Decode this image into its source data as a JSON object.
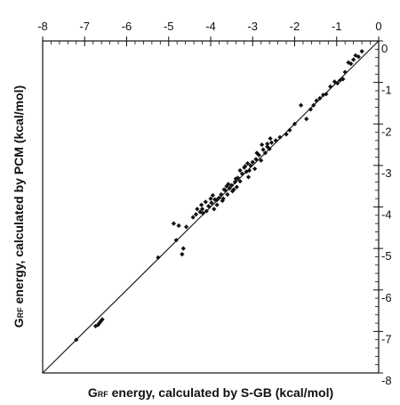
{
  "chart_data": {
    "type": "scatter",
    "title": "",
    "xlabel_main": "G",
    "xlabel_sub": "RF",
    "xlabel_rest": " energy, calculated by S-GB (kcal/mol)",
    "ylabel_main": "G",
    "ylabel_sub": "RF",
    "ylabel_rest": " energy, calculated by PCM (kcal/mol)",
    "xlim": [
      -8,
      0
    ],
    "ylim": [
      -8,
      0
    ],
    "x_ticks": [
      "-8",
      "-7",
      "-6",
      "-5",
      "-4",
      "-3",
      "-2",
      "-1",
      "0"
    ],
    "y_ticks": [
      "0",
      "-1",
      "-2",
      "-3",
      "-4",
      "-5",
      "-6",
      "-7",
      "-8"
    ],
    "x_tick_values": [
      -8,
      -7,
      -6,
      -5,
      -4,
      -3,
      -2,
      -1,
      0
    ],
    "y_tick_values": [
      0,
      -1,
      -2,
      -3,
      -4,
      -5,
      -6,
      -7,
      -8
    ],
    "x_axis_position": "top",
    "y_axis_position": "right",
    "grid": false,
    "legend": "none",
    "reference_line": {
      "from": [
        -8,
        -8
      ],
      "to": [
        0,
        0
      ]
    },
    "marker_color": "#111111",
    "points": [
      [
        -7.2,
        -7.2
      ],
      [
        -6.74,
        -6.87
      ],
      [
        -6.68,
        -6.84
      ],
      [
        -6.65,
        -6.8
      ],
      [
        -6.62,
        -6.76
      ],
      [
        -6.58,
        -6.71
      ],
      [
        -5.25,
        -5.22
      ],
      [
        -4.88,
        -4.4
      ],
      [
        -4.76,
        -4.45
      ],
      [
        -4.82,
        -4.8
      ],
      [
        -4.65,
        -5.0
      ],
      [
        -4.68,
        -5.14
      ],
      [
        -4.58,
        -4.48
      ],
      [
        -4.42,
        -4.25
      ],
      [
        -4.35,
        -4.18
      ],
      [
        -4.25,
        -4.12
      ],
      [
        -4.2,
        -4.05
      ],
      [
        -4.18,
        -4.15
      ],
      [
        -4.1,
        -4.1
      ],
      [
        -4.05,
        -3.98
      ],
      [
        -3.98,
        -3.9
      ],
      [
        -4.0,
        -3.8
      ],
      [
        -3.92,
        -4.05
      ],
      [
        -3.85,
        -3.83
      ],
      [
        -3.8,
        -3.78
      ],
      [
        -3.75,
        -3.7
      ],
      [
        -3.72,
        -3.85
      ],
      [
        -3.65,
        -3.6
      ],
      [
        -3.6,
        -3.7
      ],
      [
        -3.55,
        -3.55
      ],
      [
        -3.5,
        -3.48
      ],
      [
        -3.48,
        -3.62
      ],
      [
        -3.42,
        -3.4
      ],
      [
        -3.38,
        -3.52
      ],
      [
        -3.35,
        -3.3
      ],
      [
        -3.3,
        -3.38
      ],
      [
        -3.25,
        -3.2
      ],
      [
        -3.2,
        -3.05
      ],
      [
        -3.15,
        -3.15
      ],
      [
        -3.1,
        -3.28
      ],
      [
        -3.05,
        -3.0
      ],
      [
        -3.0,
        -2.92
      ],
      [
        -2.95,
        -3.08
      ],
      [
        -2.92,
        -2.85
      ],
      [
        -2.85,
        -2.75
      ],
      [
        -2.8,
        -2.88
      ],
      [
        -2.75,
        -2.62
      ],
      [
        -2.7,
        -2.7
      ],
      [
        -2.65,
        -2.55
      ],
      [
        -2.6,
        -2.6
      ],
      [
        -2.55,
        -2.45
      ],
      [
        -2.45,
        -2.4
      ],
      [
        -2.35,
        -2.32
      ],
      [
        -2.2,
        -2.25
      ],
      [
        -2.12,
        -2.15
      ],
      [
        -2.0,
        -2.0
      ],
      [
        -1.85,
        -1.55
      ],
      [
        -1.72,
        -1.88
      ],
      [
        -1.62,
        -1.65
      ],
      [
        -1.55,
        -1.55
      ],
      [
        -1.48,
        -1.44
      ],
      [
        -1.4,
        -1.38
      ],
      [
        -1.32,
        -1.3
      ],
      [
        -1.25,
        -1.28
      ],
      [
        -1.15,
        -1.1
      ],
      [
        -1.05,
        -0.98
      ],
      [
        -0.98,
        -1.02
      ],
      [
        -0.92,
        -0.95
      ],
      [
        -0.85,
        -0.92
      ],
      [
        -0.8,
        -0.75
      ],
      [
        -0.72,
        -0.52
      ],
      [
        -0.66,
        -0.55
      ],
      [
        -0.6,
        -0.45
      ],
      [
        -0.55,
        -0.35
      ],
      [
        -0.48,
        -0.38
      ],
      [
        -0.4,
        -0.25
      ],
      [
        -3.4,
        -3.32
      ],
      [
        -3.58,
        -3.45
      ],
      [
        -3.85,
        -3.95
      ],
      [
        -4.12,
        -3.88
      ],
      [
        -3.68,
        -3.58
      ],
      [
        -3.3,
        -3.12
      ],
      [
        -2.9,
        -2.7
      ],
      [
        -3.18,
        -3.02
      ],
      [
        -2.65,
        -2.48
      ],
      [
        -3.95,
        -3.72
      ],
      [
        -4.22,
        -3.95
      ],
      [
        -3.45,
        -3.58
      ],
      [
        -3.08,
        -3.12
      ],
      [
        -2.78,
        -2.5
      ],
      [
        -3.62,
        -3.5
      ],
      [
        -3.9,
        -3.82
      ],
      [
        -4.32,
        -4.05
      ],
      [
        -3.7,
        -3.8
      ],
      [
        -3.12,
        -2.95
      ],
      [
        -2.58,
        -2.35
      ]
    ]
  }
}
